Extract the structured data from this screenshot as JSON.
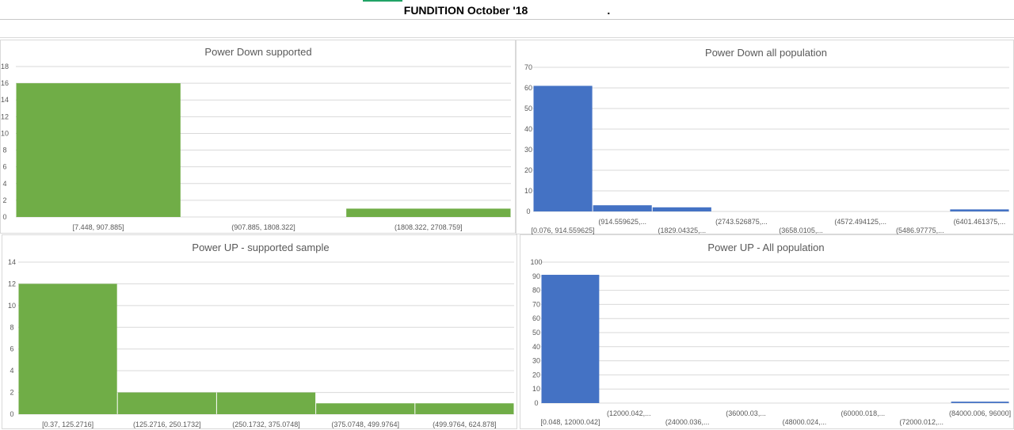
{
  "page": {
    "title": "FUNDITION October '18",
    "title_suffix": "."
  },
  "colors": {
    "green": "#70ad47",
    "blue": "#4472c4",
    "grid": "#d9d9d9",
    "text": "#595959"
  },
  "chart_data": [
    {
      "type": "bar",
      "title": "Power Down supported",
      "color": "#70ad47",
      "categories": [
        "[7.448, 907.885]",
        "(907.885, 1808.322]",
        "(1808.322, 2708.759]"
      ],
      "values": [
        16,
        0,
        1
      ],
      "yticks": [
        0,
        2,
        4,
        6,
        8,
        10,
        12,
        14,
        16,
        18
      ],
      "ylim": [
        0,
        18
      ],
      "grid": true
    },
    {
      "type": "bar",
      "title": "Power Down all population",
      "color": "#4472c4",
      "categories": [
        "[0.076, 914.559625]",
        "(914.559625,...",
        "(1829.04325,...",
        "(2743.526875,...",
        "(3658.0105,...",
        "(4572.494125,...",
        "(5486.97775,...",
        "(6401.461375,..."
      ],
      "values": [
        61,
        3,
        2,
        0,
        0,
        0,
        0,
        1
      ],
      "yticks": [
        0,
        10,
        20,
        30,
        40,
        50,
        60,
        70
      ],
      "ylim": [
        0,
        70
      ],
      "grid": true
    },
    {
      "type": "bar",
      "title": "Power UP - supported sample",
      "color": "#70ad47",
      "categories": [
        "[0.37, 125.2716]",
        "(125.2716, 250.1732]",
        "(250.1732, 375.0748]",
        "(375.0748, 499.9764]",
        "(499.9764, 624.878]"
      ],
      "values": [
        12,
        2,
        2,
        1,
        1
      ],
      "yticks": [
        0,
        2,
        4,
        6,
        8,
        10,
        12,
        14
      ],
      "ylim": [
        0,
        14
      ],
      "grid": true
    },
    {
      "type": "bar",
      "title": "Power UP - All population",
      "color": "#4472c4",
      "categories": [
        "[0.048, 12000.042]",
        "(12000.042,...",
        "(24000.036,...",
        "(36000.03,...",
        "(48000.024,...",
        "(60000.018,...",
        "(72000.012,...",
        "(84000.006, 96000]"
      ],
      "values": [
        91,
        0,
        0,
        0,
        0,
        0,
        0,
        1
      ],
      "yticks": [
        0,
        10,
        20,
        30,
        40,
        50,
        60,
        70,
        80,
        90,
        100
      ],
      "ylim": [
        0,
        100
      ],
      "grid": true
    }
  ]
}
